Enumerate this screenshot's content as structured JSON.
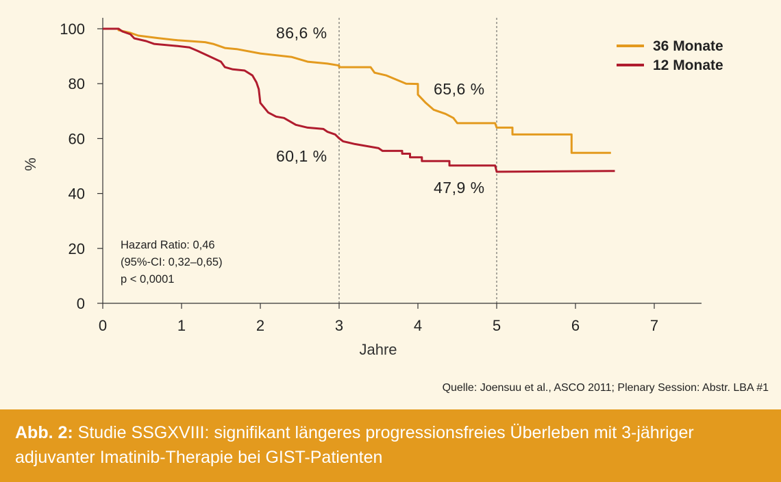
{
  "chart_data": {
    "type": "line",
    "xlabel": "Jahre",
    "ylabel": "%",
    "xlim": [
      0,
      7.6
    ],
    "ylim": [
      0,
      100
    ],
    "x_ticks": [
      0,
      1,
      2,
      3,
      4,
      5,
      6,
      7
    ],
    "y_ticks": [
      0,
      20,
      40,
      60,
      80,
      100
    ],
    "legend_position": "top-right",
    "reference_lines_x": [
      3,
      5
    ],
    "series": [
      {
        "name": "36 Monate",
        "color": "#e39a1e",
        "points": [
          [
            0,
            100
          ],
          [
            0.2,
            100
          ],
          [
            0.2,
            99.5
          ],
          [
            0.35,
            98.5
          ],
          [
            0.45,
            97.5
          ],
          [
            0.7,
            96.6
          ],
          [
            0.95,
            95.8
          ],
          [
            1.3,
            95.1
          ],
          [
            1.4,
            94.5
          ],
          [
            1.55,
            93.0
          ],
          [
            1.7,
            92.6
          ],
          [
            2.0,
            91.0
          ],
          [
            2.4,
            89.7
          ],
          [
            2.6,
            88.0
          ],
          [
            2.85,
            87.3
          ],
          [
            3.0,
            86.6
          ],
          [
            3.0,
            86.0
          ],
          [
            3.4,
            86.0
          ],
          [
            3.45,
            84.0
          ],
          [
            3.6,
            83.0
          ],
          [
            3.85,
            80.0
          ],
          [
            4.0,
            79.9
          ],
          [
            4.0,
            76.0
          ],
          [
            4.1,
            73.0
          ],
          [
            4.2,
            70.5
          ],
          [
            4.35,
            69.0
          ],
          [
            4.45,
            67.5
          ],
          [
            4.5,
            65.6
          ],
          [
            4.98,
            65.6
          ],
          [
            5.0,
            64.0
          ],
          [
            5.2,
            64.0
          ],
          [
            5.2,
            61.5
          ],
          [
            5.95,
            61.5
          ],
          [
            5.95,
            54.8
          ],
          [
            6.45,
            54.8
          ]
        ]
      },
      {
        "name": "12 Monate",
        "color": "#b01c2e",
        "points": [
          [
            0,
            100
          ],
          [
            0.2,
            100
          ],
          [
            0.25,
            99.0
          ],
          [
            0.35,
            98.0
          ],
          [
            0.4,
            96.5
          ],
          [
            0.55,
            95.5
          ],
          [
            0.65,
            94.5
          ],
          [
            0.95,
            93.7
          ],
          [
            1.1,
            93.2
          ],
          [
            1.2,
            92.0
          ],
          [
            1.35,
            90.0
          ],
          [
            1.5,
            88.0
          ],
          [
            1.55,
            86.0
          ],
          [
            1.65,
            85.2
          ],
          [
            1.8,
            84.8
          ],
          [
            1.9,
            83.0
          ],
          [
            1.95,
            80.5
          ],
          [
            1.98,
            78.0
          ],
          [
            2.0,
            73.0
          ],
          [
            2.1,
            69.5
          ],
          [
            2.2,
            68.0
          ],
          [
            2.3,
            67.5
          ],
          [
            2.45,
            65.0
          ],
          [
            2.6,
            64.0
          ],
          [
            2.8,
            63.5
          ],
          [
            2.85,
            62.5
          ],
          [
            2.95,
            61.5
          ],
          [
            3.0,
            60.1
          ],
          [
            3.05,
            59.0
          ],
          [
            3.2,
            58.0
          ],
          [
            3.5,
            56.5
          ],
          [
            3.55,
            55.5
          ],
          [
            3.8,
            55.5
          ],
          [
            3.8,
            54.5
          ],
          [
            3.9,
            54.5
          ],
          [
            3.9,
            53.2
          ],
          [
            4.05,
            53.2
          ],
          [
            4.05,
            51.8
          ],
          [
            4.4,
            51.8
          ],
          [
            4.4,
            50.2
          ],
          [
            4.98,
            50.2
          ],
          [
            5.0,
            47.9
          ],
          [
            6.5,
            48.2
          ]
        ]
      }
    ],
    "annotations": [
      {
        "text": "86,6 %",
        "x": 3,
        "y": 86.6,
        "series": "36 Monate"
      },
      {
        "text": "65,6 %",
        "x": 5,
        "y": 65.6,
        "series": "36 Monate"
      },
      {
        "text": "60,1 %",
        "x": 3,
        "y": 60.1,
        "series": "12 Monate"
      },
      {
        "text": "47,9 %",
        "x": 5,
        "y": 47.9,
        "series": "12 Monate"
      }
    ],
    "stats_text": [
      "Hazard Ratio: 0,46",
      "(95%-CI: 0,32–0,65)",
      "p < 0,0001"
    ]
  },
  "source": "Quelle: Joensuu et al., ASCO 2011; Plenary Session: Abstr. LBA #1",
  "caption": {
    "label": "Abb. 2:",
    "text": "Studie SSGXVIII: signifikant längeres progressionsfreies Überleben mit 3-jähriger adjuvanter Imatinib-Therapie bei GIST-Patienten"
  },
  "colors": {
    "background": "#fdf6e4",
    "caption_bar": "#e39a1e",
    "series_36": "#e39a1e",
    "series_12": "#b01c2e"
  }
}
